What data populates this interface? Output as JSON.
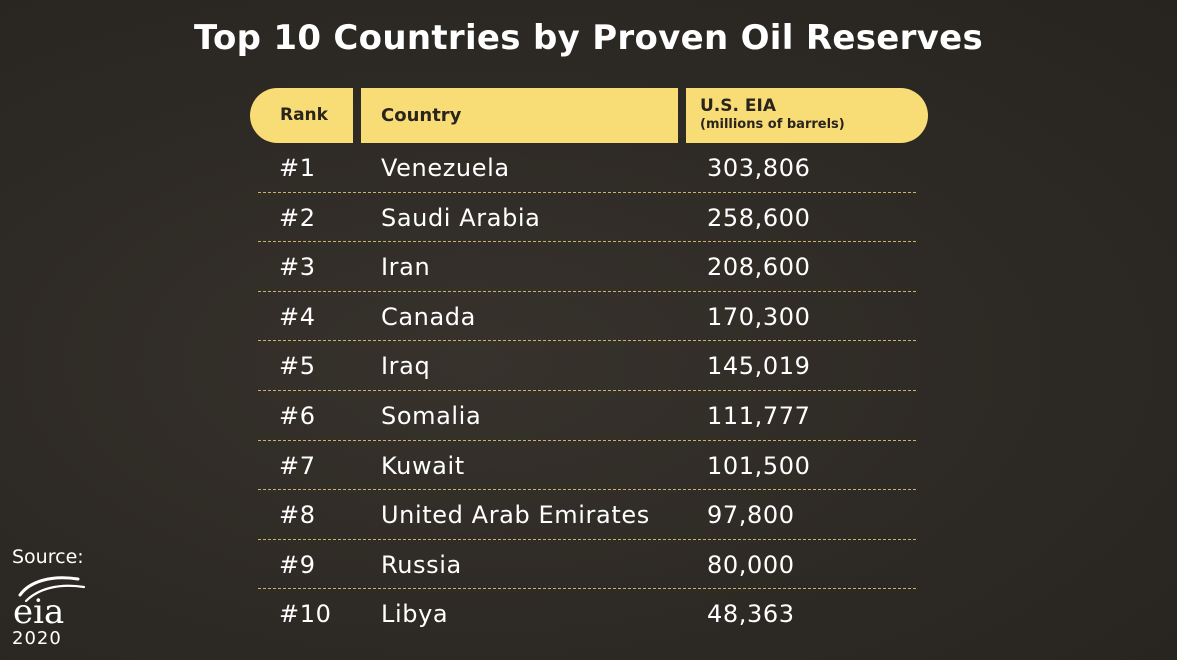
{
  "title": "Top 10 Countries by Proven Oil Reserves",
  "table": {
    "headers": {
      "rank": "Rank",
      "country": "Country",
      "eia": "U.S. EIA",
      "eia_unit": "(millions of barrels)"
    },
    "rows": [
      {
        "rank": "#1",
        "country": "Venezuela",
        "value": "303,806"
      },
      {
        "rank": "#2",
        "country": "Saudi Arabia",
        "value": "258,600"
      },
      {
        "rank": "#3",
        "country": "Iran",
        "value": "208,600"
      },
      {
        "rank": "#4",
        "country": "Canada",
        "value": "170,300"
      },
      {
        "rank": "#5",
        "country": "Iraq",
        "value": "145,019"
      },
      {
        "rank": "#6",
        "country": "Somalia",
        "value": "111,777"
      },
      {
        "rank": "#7",
        "country": "Kuwait",
        "value": "101,500"
      },
      {
        "rank": "#8",
        "country": "United Arab Emirates",
        "value": "97,800"
      },
      {
        "rank": "#9",
        "country": "Russia",
        "value": "80,000"
      },
      {
        "rank": "#10",
        "country": "Libya",
        "value": "48,363"
      }
    ]
  },
  "source": {
    "label": "Source:",
    "logo_text": "eia",
    "year": "2020"
  },
  "colors": {
    "background": "#2f2b26",
    "header_fill": "#f8dd76",
    "header_text": "#2a241d",
    "divider": "#c9b46a",
    "text": "#ffffff"
  }
}
